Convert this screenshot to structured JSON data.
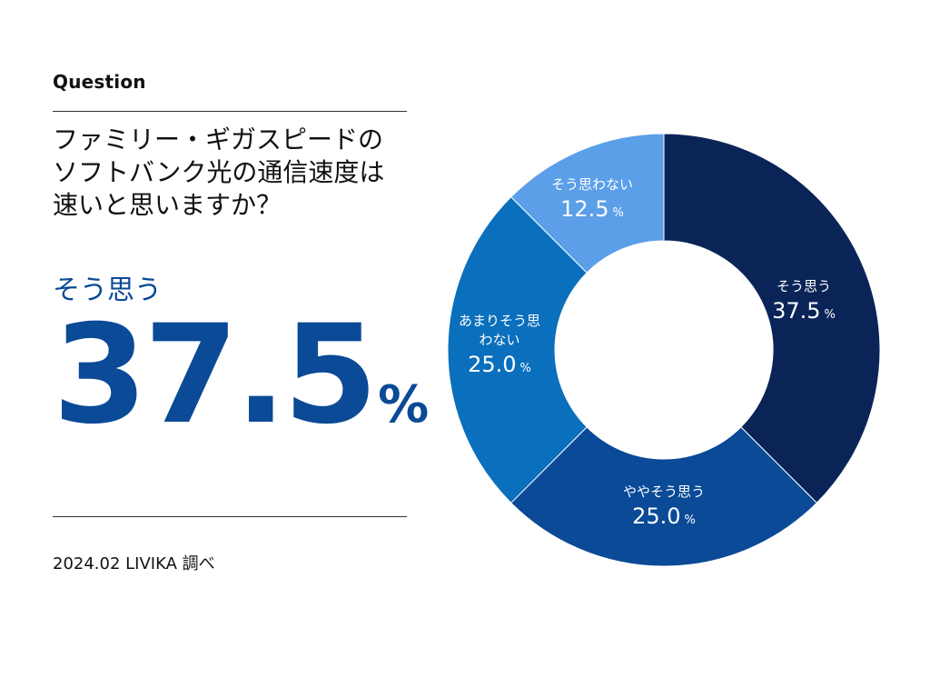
{
  "header": {
    "question_label": "Question",
    "question_lines": [
      "ファミリー・ギガスピードの",
      "ソフトバンク光の通信速度は",
      "速いと思いますか？"
    ]
  },
  "highlight": {
    "label": "そう思う",
    "value": "37.5",
    "unit": "%"
  },
  "footer": {
    "source": "2024.02 LIVIKA 調べ"
  },
  "chart_data": {
    "type": "pie",
    "style": "donut",
    "categories": [
      "そう思う",
      "ややそう思う",
      "あまりそう思わない",
      "そう思わない"
    ],
    "values": [
      37.5,
      25.0,
      25.0,
      12.5
    ],
    "value_labels": [
      "37.5",
      "25.0",
      "25.0",
      "12.5"
    ],
    "unit": "%",
    "colors": [
      "#0b2458",
      "#0a4a96",
      "#0a6fbc",
      "#5b9fe8"
    ],
    "start_angle": "top",
    "direction": "clockwise"
  }
}
